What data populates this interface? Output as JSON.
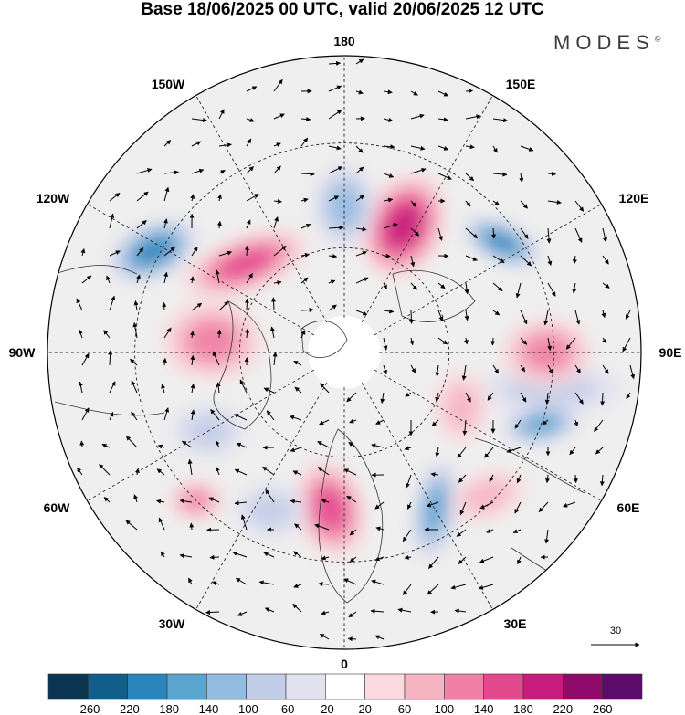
{
  "title": "Base 18/06/2025 00 UTC, valid 20/06/2025 12 UTC",
  "brand": "MODES",
  "brand_mark": "©",
  "longitude_labels": {
    "top": "180",
    "bottom": "0",
    "left": "90W",
    "right": "90E",
    "upper_left_1": "150W",
    "upper_left_2": "120W",
    "upper_right_1": "150E",
    "upper_right_2": "120E",
    "lower_left_1": "60W",
    "lower_left_2": "30W",
    "lower_right_1": "60E",
    "lower_right_2": "30E"
  },
  "vector_scale": {
    "label": "30"
  },
  "colorbar": {
    "ticks": [
      "-260",
      "-220",
      "-180",
      "-140",
      "-100",
      "-60",
      "-20",
      "20",
      "60",
      "100",
      "140",
      "180",
      "220",
      "260"
    ],
    "colors": [
      "#0c3552",
      "#115e8b",
      "#2c85ba",
      "#5aa4cf",
      "#93bce0",
      "#c2cde7",
      "#e2e1f0",
      "#ffffff",
      "#fadadf",
      "#f6b4c3",
      "#ef80a6",
      "#e4498e",
      "#c71c7c",
      "#8e0b6b",
      "#5c0a6b"
    ]
  },
  "anomalies": [
    {
      "lon": 155,
      "lat": 50,
      "value": 180,
      "rx": 44,
      "ry": 60,
      "rot": 25
    },
    {
      "lon": 125,
      "lat": 35,
      "value": -180,
      "rx": 46,
      "ry": 22,
      "rot": 25
    },
    {
      "lon": 180,
      "lat": 48,
      "value": -100,
      "rx": 34,
      "ry": 46,
      "rot": 0
    },
    {
      "lon": 228,
      "lat": 52,
      "value": 140,
      "rx": 72,
      "ry": 30,
      "rot": -20
    },
    {
      "lon": 242,
      "lat": 28,
      "value": -180,
      "rx": 52,
      "ry": 30,
      "rot": -25
    },
    {
      "lon": 80,
      "lat": 30,
      "value": -60,
      "rx": 80,
      "ry": 28,
      "rot": 0
    },
    {
      "lon": 90,
      "lat": 32,
      "value": 100,
      "rx": 50,
      "ry": 38,
      "rot": 0
    },
    {
      "lon": 70,
      "lat": 30,
      "value": -140,
      "rx": 44,
      "ry": 22,
      "rot": -10
    },
    {
      "lon": 65,
      "lat": 53,
      "value": 60,
      "rx": 30,
      "ry": 40,
      "rot": 0
    },
    {
      "lon": 30,
      "lat": 38,
      "value": -140,
      "rx": 24,
      "ry": 56,
      "rot": 10
    },
    {
      "lon": 355,
      "lat": 45,
      "value": 140,
      "rx": 38,
      "ry": 54,
      "rot": -15
    },
    {
      "lon": 265,
      "lat": 52,
      "value": 100,
      "rx": 56,
      "ry": 44,
      "rot": 0
    },
    {
      "lon": 300,
      "lat": 45,
      "value": -60,
      "rx": 40,
      "ry": 30,
      "rot": 0
    },
    {
      "lon": 315,
      "lat": 30,
      "value": 100,
      "rx": 30,
      "ry": 22,
      "rot": 0
    },
    {
      "lon": 335,
      "lat": 40,
      "value": -60,
      "rx": 40,
      "ry": 30,
      "rot": 0
    },
    {
      "lon": 45,
      "lat": 32,
      "value": 60,
      "rx": 44,
      "ry": 26,
      "rot": -20
    }
  ]
}
